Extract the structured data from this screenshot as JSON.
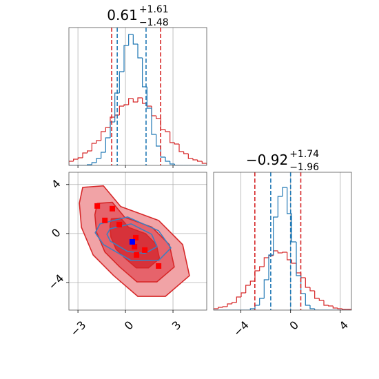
{
  "chart_data": [
    {
      "type": "histogram",
      "title": "0.61",
      "title_upper": "+1.61",
      "title_lower": "−1.48",
      "bins": [
        -3.57,
        -3.28,
        -2.99,
        -2.7,
        -2.41,
        -2.12,
        -1.83,
        -1.54,
        -1.25,
        -0.96,
        -0.67,
        -0.38,
        -0.09,
        0.2,
        0.49,
        0.78,
        1.07,
        1.36,
        1.65,
        1.94,
        2.23,
        2.52,
        2.81,
        3.1,
        3.39,
        3.68,
        3.97,
        4.26,
        4.55,
        4.84,
        5.13
      ],
      "series": [
        {
          "color": "#d62728",
          "values": [
            6,
            9,
            11,
            18,
            21,
            32,
            36,
            49,
            55,
            70,
            73,
            86,
            88,
            97,
            92,
            98,
            90,
            86,
            72,
            68,
            52,
            49,
            33,
            31,
            20,
            17,
            10,
            8,
            6,
            3
          ]
        },
        {
          "color": "#1f77b4",
          "values": [
            0,
            0,
            0,
            0,
            1,
            4,
            10,
            19,
            40,
            63,
            105,
            136,
            174,
            190,
            176,
            156,
            114,
            83,
            45,
            28,
            12,
            6,
            2,
            0,
            0,
            0,
            0,
            0,
            0,
            0
          ]
        }
      ],
      "quantiles": [
        {
          "color": "#d62728",
          "values": [
            -0.87,
            2.22
          ]
        },
        {
          "color": "#1f77b4",
          "values": [
            -0.52,
            1.3
          ]
        }
      ],
      "xlim": [
        -3.57,
        5.13
      ],
      "ylim": [
        0,
        200
      ],
      "xticks": [
        {
          "value": -3,
          "label": "−3"
        },
        0,
        3
      ],
      "show_xtick_labels": false,
      "grid": true
    },
    {
      "type": "contour",
      "contours": [
        {
          "color": "#d62728",
          "fill": "#f1a3a6",
          "x": [
            -2.7,
            -1.39,
            -0.3,
            2.09,
            3.61,
            4.04,
            2.52,
            0.78,
            -0.74,
            -2.04,
            -2.78,
            -2.91
          ],
          "y": [
            3.77,
            3.89,
            2.2,
            1.07,
            -0.9,
            -3.44,
            -5.13,
            -5.13,
            -3.44,
            -1.75,
            0.51,
            2.48
          ]
        },
        {
          "color": "#d62728",
          "fill": "#e6636b",
          "x": [
            -1.78,
            -0.83,
            -0.05,
            1.67,
            2.77,
            3.08,
            1.98,
            0.73,
            -0.36,
            -1.3,
            -1.83,
            -1.93
          ],
          "y": [
            2.46,
            2.55,
            1.33,
            0.52,
            -0.9,
            -2.73,
            -3.95,
            -3.95,
            -2.73,
            -1.51,
            0.12,
            1.53
          ]
        },
        {
          "color": "#d62728",
          "fill": "#d7323a",
          "x": [
            -0.89,
            -0.3,
            0.2,
            1.27,
            1.95,
            2.15,
            1.46,
            0.68,
            0.0,
            -0.59,
            -0.92,
            -0.98
          ],
          "y": [
            1.2,
            1.26,
            0.5,
            -0.01,
            -0.9,
            -2.04,
            -2.8,
            -2.8,
            -2.04,
            -1.28,
            -0.27,
            0.62
          ]
        },
        {
          "color": "#3f7fc0",
          "fill": "none",
          "x": [
            -1.61,
            0.13,
            2.09,
            2.87,
            2.09,
            0.35,
            -1.39,
            -1.91
          ],
          "y": [
            0.79,
            1.35,
            0.23,
            -1.18,
            -2.2,
            -2.2,
            -0.9,
            0.06
          ]
        },
        {
          "color": "#3f7fc0",
          "fill": "none",
          "x": [
            -0.96,
            0.35,
            1.65,
            2.0,
            1.22,
            0.13,
            -0.96,
            -1.17
          ],
          "y": [
            0.39,
            0.79,
            -0.06,
            -1.07,
            -1.63,
            -1.46,
            -0.62,
            -0.06
          ]
        }
      ],
      "points": [
        {
          "color": "#ff0000",
          "x": [
            -1.78,
            -0.83,
            -0.39,
            -1.3,
            0.65,
            0.57,
            1.22,
            0.7,
            2.09
          ],
          "y": [
            2.25,
            2.03,
            0.73,
            1.07,
            -0.34,
            -1.07,
            -1.35,
            -1.75,
            -2.65
          ]
        },
        {
          "color": "#0000ff",
          "x": [
            0.43
          ],
          "y": [
            -0.68
          ]
        }
      ],
      "xlim": [
        -3.57,
        5.13
      ],
      "ylim": [
        -6.25,
        5.0
      ],
      "xticks": [
        {
          "value": -3,
          "label": "−3"
        },
        0,
        3
      ],
      "yticks": [
        {
          "value": -4,
          "label": "−4"
        },
        0,
        4
      ],
      "show_xtick_labels": true,
      "grid": true
    },
    {
      "type": "histogram",
      "title": "−0.92",
      "title_upper": "+1.74",
      "title_lower": "−1.96",
      "bins": [
        -6.2,
        -5.83,
        -5.46,
        -5.09,
        -4.72,
        -4.35,
        -3.98,
        -3.61,
        -3.24,
        -2.87,
        -2.5,
        -2.13,
        -1.76,
        -1.39,
        -1.02,
        -0.65,
        -0.28,
        0.09,
        0.46,
        0.83,
        1.2,
        1.57,
        1.94,
        2.31,
        2.68,
        3.05,
        3.42,
        3.79,
        4.16,
        4.53,
        4.9
      ],
      "series": [
        {
          "color": "#d62728",
          "values": [
            2,
            4,
            5,
            9,
            11,
            19,
            25,
            36,
            42,
            57,
            63,
            76,
            79,
            86,
            83,
            84,
            73,
            68,
            54,
            47,
            33,
            28,
            17,
            14,
            7,
            6,
            3,
            2,
            1,
            1
          ]
        },
        {
          "color": "#1f77b4",
          "values": [
            0,
            0,
            0,
            0,
            0,
            0,
            0,
            0,
            2,
            7,
            17,
            44,
            80,
            135,
            165,
            178,
            140,
            99,
            50,
            24,
            7,
            2,
            0,
            0,
            0,
            0,
            0,
            0,
            0,
            0
          ]
        }
      ],
      "quantiles": [
        {
          "color": "#d62728",
          "values": [
            -2.88,
            0.82
          ]
        },
        {
          "color": "#1f77b4",
          "values": [
            -1.6,
            0.0
          ]
        }
      ],
      "xlim": [
        -6.2,
        4.9
      ],
      "ylim": [
        0,
        200
      ],
      "xticks": [
        {
          "value": -4,
          "label": "−4"
        },
        0,
        4
      ],
      "show_xtick_labels": true,
      "grid": true
    }
  ]
}
